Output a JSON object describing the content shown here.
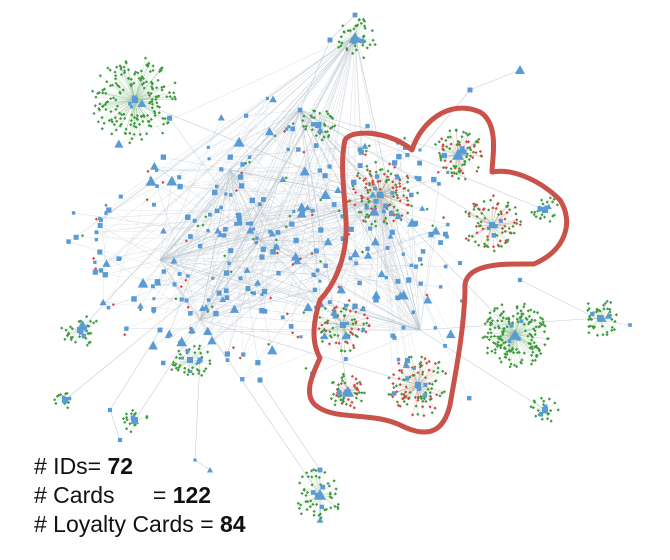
{
  "stats": [
    {
      "label": "# IDs= ",
      "value": "72"
    },
    {
      "label": "# Cards      = ",
      "value": "122"
    },
    {
      "label": "# Loyalty Cards = ",
      "value": "84"
    }
  ],
  "colors": {
    "id_node": "#5b9bd5",
    "card_node": "#3f9b3f",
    "loyalty_node": "#d94545",
    "edge": "#b8c2cc",
    "highlight": "#c9524a"
  },
  "icons": {
    "id_node": "blue-square-node",
    "card_node": "green-diamond-node",
    "loyalty_node": "red-dot-node",
    "highlight": "red-outline-region"
  }
}
